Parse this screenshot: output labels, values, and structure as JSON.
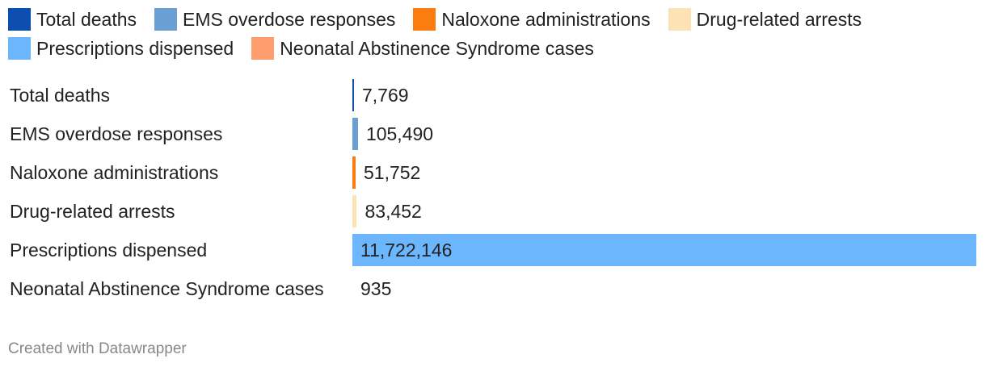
{
  "chart_data": {
    "type": "bar",
    "orientation": "horizontal",
    "categories": [
      "Total deaths",
      "EMS overdose responses",
      "Naloxone administrations",
      "Drug-related arrests",
      "Prescriptions dispensed",
      "Neonatal Abstinence Syndrome cases"
    ],
    "values": [
      7769,
      105490,
      51752,
      83452,
      11722146,
      935
    ],
    "value_labels": [
      "7,769",
      "105,490",
      "51,752",
      "83,452",
      "11,722,146",
      "935"
    ],
    "colors": [
      "#0d4faf",
      "#6a9fd1",
      "#fb7d0f",
      "#fde2b5",
      "#6cb6fe",
      "#fd9d6e"
    ],
    "xlim": [
      0,
      11722146
    ],
    "legend": "top",
    "grid": false
  },
  "footer": "Created with Datawrapper"
}
